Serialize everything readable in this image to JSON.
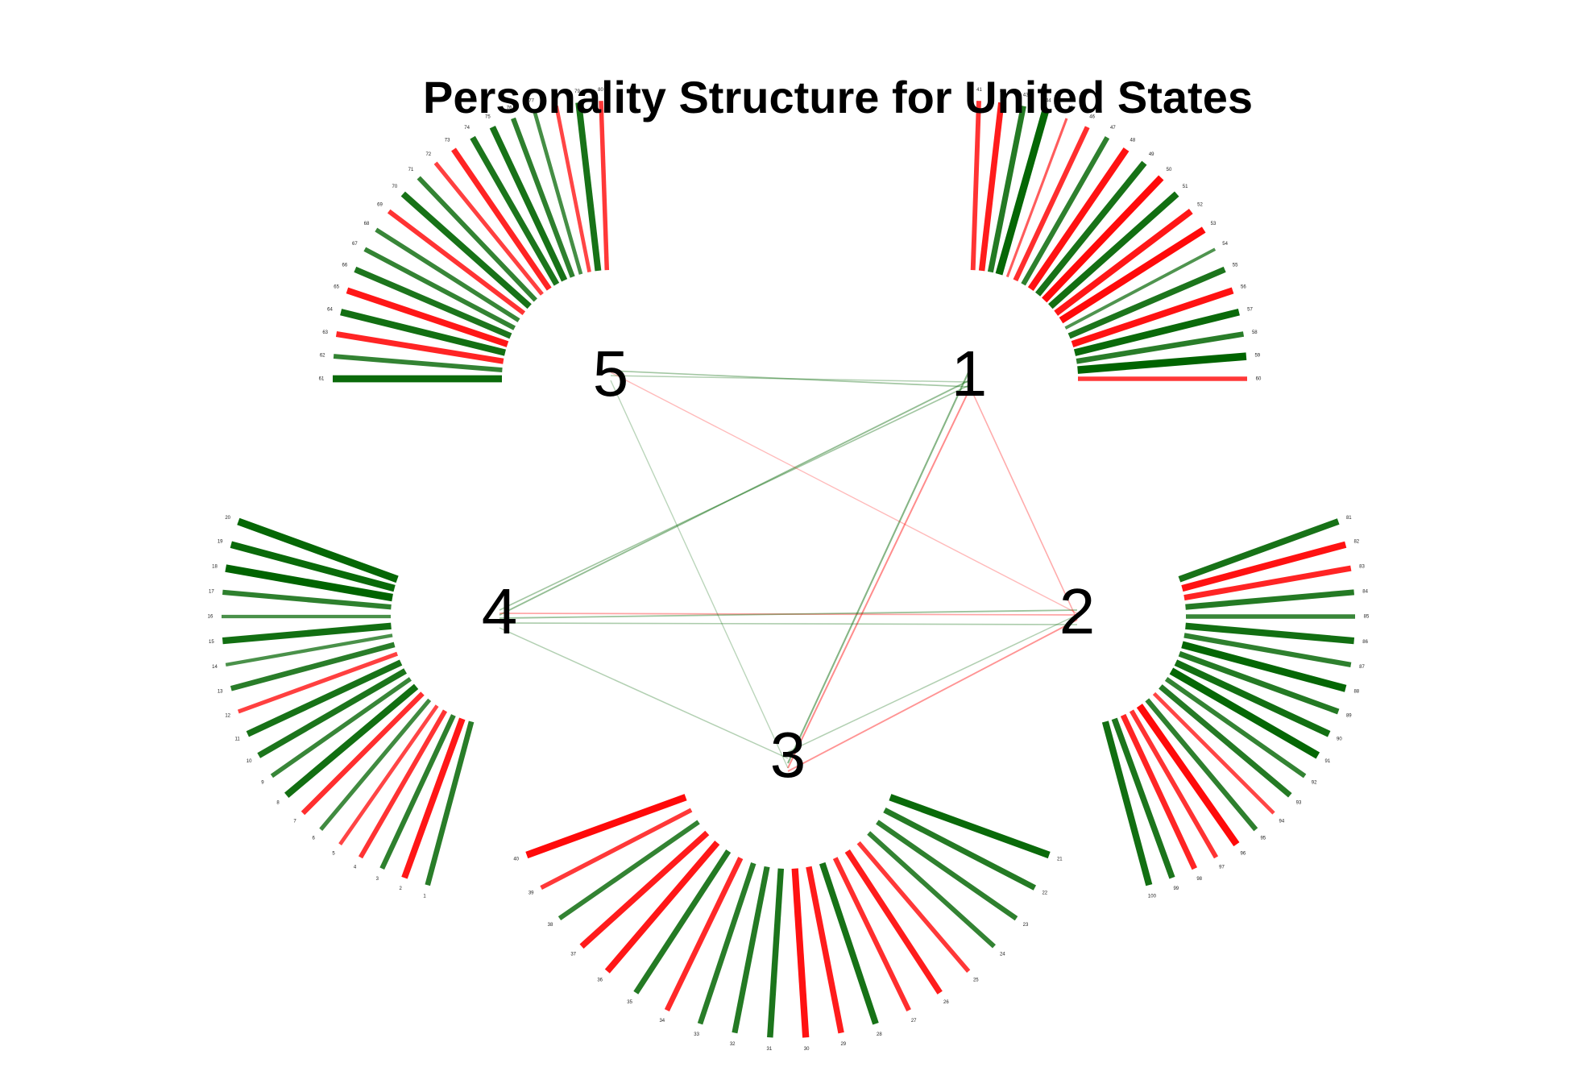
{
  "title": "Personality Structure for United States",
  "colors": {
    "positive": "#006400",
    "negative": "#ff0000"
  },
  "factors": [
    {
      "label": "1",
      "items": [
        "41",
        "42",
        "43",
        "44",
        "45",
        "46",
        "47",
        "48",
        "49",
        "50",
        "51",
        "52",
        "53",
        "54",
        "55",
        "56",
        "57",
        "58",
        "59",
        "60"
      ]
    },
    {
      "label": "2",
      "items": [
        "81",
        "82",
        "83",
        "84",
        "85",
        "86",
        "87",
        "88",
        "89",
        "90",
        "91",
        "92",
        "93",
        "94",
        "95",
        "96",
        "97",
        "98",
        "99",
        "100"
      ]
    },
    {
      "label": "3",
      "items": [
        "21",
        "22",
        "23",
        "24",
        "25",
        "26",
        "27",
        "28",
        "29",
        "30",
        "31",
        "32",
        "33",
        "34",
        "35",
        "36",
        "37",
        "38",
        "39",
        "40"
      ]
    },
    {
      "label": "4",
      "items": [
        "1",
        "2",
        "3",
        "4",
        "5",
        "6",
        "7",
        "8",
        "9",
        "10",
        "11",
        "12",
        "13",
        "14",
        "15",
        "16",
        "17",
        "18",
        "19",
        "20"
      ]
    },
    {
      "label": "5",
      "items": [
        "61",
        "62",
        "63",
        "64",
        "65",
        "66",
        "67",
        "68",
        "69",
        "70",
        "71",
        "72",
        "73",
        "74",
        "75",
        "76",
        "77",
        "78",
        "79",
        "80"
      ]
    }
  ],
  "loadings": {
    "1": [
      -0.55,
      -0.75,
      0.7,
      0.95,
      -0.2,
      -0.6,
      0.6,
      -0.85,
      0.8,
      -0.9,
      0.85,
      -0.8,
      -0.9,
      0.3,
      0.75,
      -0.85,
      0.9,
      0.65,
      1.0,
      -0.5
    ],
    "2": [
      0.8,
      -0.85,
      -0.7,
      0.7,
      0.5,
      0.85,
      0.6,
      0.95,
      0.7,
      0.85,
      0.95,
      0.55,
      0.7,
      -0.4,
      0.6,
      -0.9,
      -0.55,
      -0.7,
      0.75,
      0.85
    ],
    "3": [
      0.9,
      0.7,
      0.6,
      0.55,
      -0.5,
      -0.75,
      -0.6,
      0.8,
      -0.75,
      -0.85,
      0.75,
      0.7,
      0.65,
      -0.65,
      0.7,
      -0.8,
      -0.75,
      0.55,
      -0.5,
      -0.9
    ],
    "4": [
      0.65,
      -0.8,
      0.6,
      -0.55,
      -0.4,
      0.45,
      -0.6,
      0.85,
      0.5,
      0.75,
      0.8,
      -0.45,
      0.65,
      0.35,
      0.85,
      0.35,
      0.6,
      1.0,
      0.9,
      0.95
    ],
    "5": [
      0.9,
      0.55,
      -0.7,
      0.85,
      -0.8,
      0.75,
      0.55,
      0.5,
      -0.55,
      0.8,
      0.55,
      -0.45,
      -0.7,
      0.75,
      0.8,
      0.6,
      0.4,
      -0.4,
      0.8,
      -0.5
    ]
  },
  "cross_links": [
    {
      "from": "5",
      "to": "1",
      "r": 0.35
    },
    {
      "from": "5",
      "to": "1",
      "r": 0.25
    },
    {
      "from": "1",
      "to": "4",
      "r": 0.45
    },
    {
      "from": "1",
      "to": "4",
      "r": 0.35
    },
    {
      "from": "1",
      "to": "3",
      "r": -0.5
    },
    {
      "from": "1",
      "to": "3",
      "r": 0.55
    },
    {
      "from": "4",
      "to": "2",
      "r": -0.35
    },
    {
      "from": "4",
      "to": "2",
      "r": 0.4
    },
    {
      "from": "4",
      "to": "2",
      "r": 0.3
    },
    {
      "from": "3",
      "to": "2",
      "r": -0.45
    },
    {
      "from": "3",
      "to": "2",
      "r": 0.25
    },
    {
      "from": "2",
      "to": "5",
      "r": -0.2
    },
    {
      "from": "5",
      "to": "3",
      "r": 0.2
    },
    {
      "from": "1",
      "to": "2",
      "r": -0.3
    },
    {
      "from": "4",
      "to": "3",
      "r": 0.25
    }
  ]
}
